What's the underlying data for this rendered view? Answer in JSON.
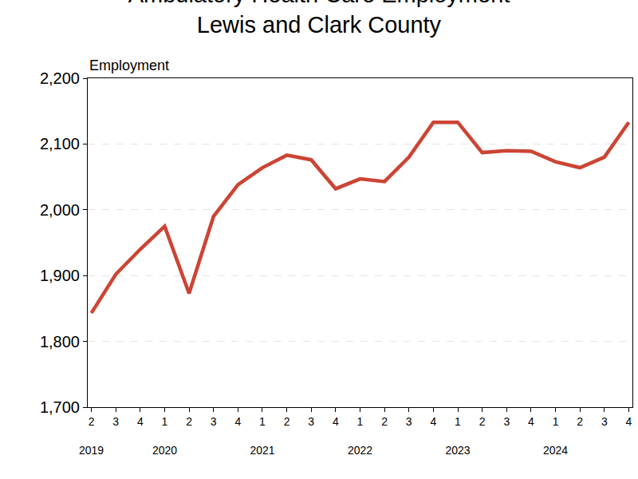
{
  "chart_data": {
    "type": "line",
    "title": "Ambulatory Health Care Employment\nLewis and Clark County",
    "y_label": "Employment",
    "categories": [
      "2",
      "3",
      "4",
      "1",
      "2",
      "3",
      "4",
      "1",
      "2",
      "3",
      "4",
      "1",
      "2",
      "3",
      "4",
      "1",
      "2",
      "3",
      "4",
      "1",
      "2",
      "3",
      "4"
    ],
    "years": [
      "2019",
      null,
      null,
      "2020",
      null,
      null,
      null,
      "2021",
      null,
      null,
      null,
      "2022",
      null,
      null,
      null,
      "2023",
      null,
      null,
      null,
      "2024",
      null,
      null,
      null
    ],
    "values": [
      1843,
      1902,
      1940,
      1975,
      1873,
      1990,
      2038,
      2064,
      2083,
      2076,
      2032,
      2047,
      2043,
      2080,
      2133,
      2133,
      2087,
      2090,
      2089,
      2073,
      2064,
      2080,
      2133
    ],
    "color": "#cc4433",
    "ylim": [
      1700,
      2200
    ],
    "yticks": [
      {
        "value": 1700,
        "label": "1,700"
      },
      {
        "value": 1800,
        "label": "1,800"
      },
      {
        "value": 1900,
        "label": "1,900"
      },
      {
        "value": 2000,
        "label": "2,000"
      },
      {
        "value": 2100,
        "label": "2,100"
      },
      {
        "value": 2200,
        "label": "2,200"
      }
    ],
    "grid": true
  }
}
